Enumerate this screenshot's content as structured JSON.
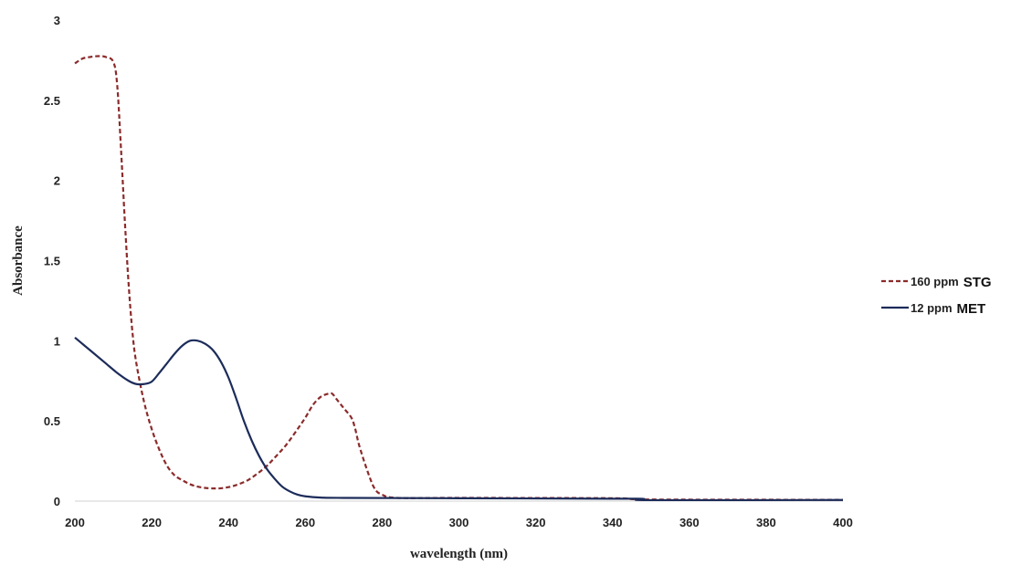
{
  "chart_data": {
    "type": "line",
    "title": "",
    "xlabel": "wavelength (nm)",
    "ylabel": "Absorbance",
    "xlim": [
      200,
      400
    ],
    "ylim": [
      0,
      3
    ],
    "x_ticks": [
      200,
      220,
      240,
      260,
      280,
      300,
      320,
      340,
      360,
      380,
      400
    ],
    "y_ticks": [
      0,
      0.5,
      1,
      1.5,
      2,
      2.5,
      3
    ],
    "grid": false,
    "legend_position": "right",
    "series": [
      {
        "name": "160 ppm",
        "tag": "STG",
        "color": "#8b2b2b",
        "style": "dashed",
        "points": [
          [
            200,
            2.73
          ],
          [
            202,
            2.76
          ],
          [
            204,
            2.77
          ],
          [
            206,
            2.775
          ],
          [
            208,
            2.77
          ],
          [
            210,
            2.74
          ],
          [
            211,
            2.6
          ],
          [
            212,
            2.2
          ],
          [
            213,
            1.75
          ],
          [
            214,
            1.35
          ],
          [
            215,
            1.05
          ],
          [
            216,
            0.86
          ],
          [
            218,
            0.62
          ],
          [
            220,
            0.45
          ],
          [
            222,
            0.32
          ],
          [
            224,
            0.22
          ],
          [
            226,
            0.16
          ],
          [
            228,
            0.13
          ],
          [
            230,
            0.105
          ],
          [
            232,
            0.09
          ],
          [
            234,
            0.082
          ],
          [
            236,
            0.079
          ],
          [
            238,
            0.08
          ],
          [
            240,
            0.087
          ],
          [
            242,
            0.1
          ],
          [
            245,
            0.13
          ],
          [
            248,
            0.18
          ],
          [
            250,
            0.22
          ],
          [
            252,
            0.27
          ],
          [
            255,
            0.35
          ],
          [
            258,
            0.45
          ],
          [
            260,
            0.52
          ],
          [
            262,
            0.6
          ],
          [
            264,
            0.65
          ],
          [
            266,
            0.67
          ],
          [
            267,
            0.67
          ],
          [
            268,
            0.64
          ],
          [
            270,
            0.58
          ],
          [
            272,
            0.52
          ],
          [
            273,
            0.45
          ],
          [
            274,
            0.35
          ],
          [
            276,
            0.2
          ],
          [
            278,
            0.08
          ],
          [
            280,
            0.04
          ],
          [
            284,
            0.02
          ],
          [
            300,
            0.02
          ],
          [
            340,
            0.018
          ],
          [
            350,
            0.01
          ],
          [
            400,
            0.008
          ]
        ]
      },
      {
        "name": "12 ppm",
        "tag": "MET",
        "color": "#1c2c5a",
        "style": "solid",
        "points": [
          [
            200,
            1.02
          ],
          [
            202,
            0.98
          ],
          [
            205,
            0.92
          ],
          [
            208,
            0.86
          ],
          [
            211,
            0.8
          ],
          [
            214,
            0.75
          ],
          [
            216,
            0.73
          ],
          [
            218,
            0.73
          ],
          [
            220,
            0.745
          ],
          [
            222,
            0.8
          ],
          [
            224,
            0.86
          ],
          [
            226,
            0.92
          ],
          [
            228,
            0.97
          ],
          [
            230,
            1.0
          ],
          [
            232,
            1.0
          ],
          [
            234,
            0.98
          ],
          [
            236,
            0.94
          ],
          [
            238,
            0.87
          ],
          [
            240,
            0.77
          ],
          [
            242,
            0.64
          ],
          [
            244,
            0.5
          ],
          [
            246,
            0.38
          ],
          [
            248,
            0.28
          ],
          [
            250,
            0.2
          ],
          [
            252,
            0.14
          ],
          [
            254,
            0.09
          ],
          [
            256,
            0.06
          ],
          [
            258,
            0.04
          ],
          [
            260,
            0.03
          ],
          [
            264,
            0.022
          ],
          [
            270,
            0.02
          ],
          [
            300,
            0.018
          ],
          [
            340,
            0.015
          ],
          [
            348,
            0.014
          ],
          [
            350,
            0.006
          ],
          [
            400,
            0.007
          ]
        ]
      }
    ]
  }
}
